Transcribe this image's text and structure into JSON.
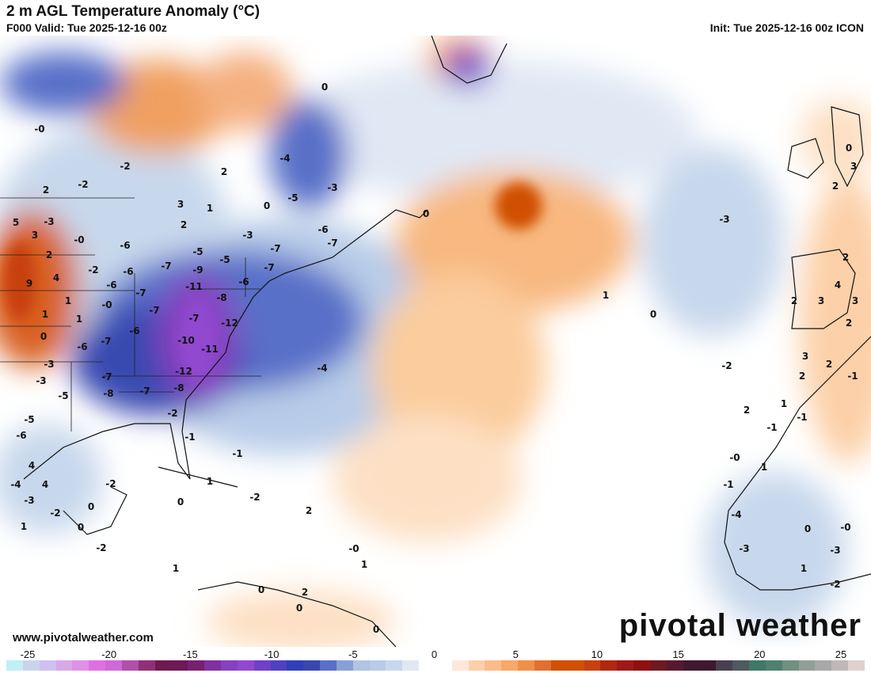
{
  "header": {
    "title": "2 m AGL Temperature Anomaly (°C)",
    "valid": "F000 Valid: Tue 2025-12-16 00z",
    "init": "Init: Tue 2025-12-16 00z ICON"
  },
  "footer": {
    "website": "www.pivotalweather.com",
    "brand": "pivotal weather"
  },
  "colorbar": {
    "ticks": [
      "-25",
      "-20",
      "-15",
      "-10",
      "-5",
      "0",
      "5",
      "10",
      "15",
      "20",
      "25"
    ],
    "tick_values": [
      -25,
      -20,
      -15,
      -10,
      -5,
      0,
      5,
      10,
      15,
      20,
      25
    ],
    "colors": [
      "#c0f0f5",
      "#c8d4ec",
      "#d0c0f0",
      "#d8a8e8",
      "#e090e8",
      "#e070e0",
      "#d068d8",
      "#b050a8",
      "#903078",
      "#701850",
      "#701858",
      "#782070",
      "#8030a0",
      "#8840c0",
      "#9048d0",
      "#7040c8",
      "#5040c0",
      "#3040b8",
      "#3848b0",
      "#5870c8",
      "#88a0d8",
      "#b0c4e4",
      "#b8cce8",
      "#c8d8ec",
      "#e0e8f4",
      "#ffffff",
      "#ffffff",
      "#fde8d8",
      "#fcd0a8",
      "#fbbc88",
      "#f8a868",
      "#f09048",
      "#e07030",
      "#d05000",
      "#d05000",
      "#c84010",
      "#b02810",
      "#a01818",
      "#901010",
      "#701820",
      "#581830",
      "#401830",
      "#401830",
      "#484050",
      "#505860",
      "#407868",
      "#508070",
      "#709080",
      "#90a098",
      "#a8a8a8",
      "#c0b8b8",
      "#e0d0d0"
    ]
  },
  "map_labels": [
    "-0",
    "-2",
    "2",
    "-2",
    "3",
    "2",
    "1",
    "-3",
    "0",
    "-5",
    "5",
    "-3",
    "3",
    "-0",
    "2",
    "9",
    "4",
    "-2",
    "-6",
    "1",
    "-0",
    "1",
    "1",
    "0",
    "-6",
    "-3",
    "-3",
    "-5",
    "-7",
    "-7",
    "-7",
    "-7",
    "-6",
    "-7",
    "-6",
    "-6",
    "-7",
    "-9",
    "-11",
    "-8",
    "-12",
    "-10",
    "-11",
    "-12",
    "-8",
    "-8",
    "-7",
    "-2",
    "-1",
    "-4",
    "-5",
    "-5",
    "-3",
    "-6",
    "-7",
    "-7",
    "-7",
    "-6",
    "2",
    "-5",
    "-6",
    "-4",
    "0",
    "0",
    "-3",
    "1",
    "0",
    "-2",
    "0",
    "2",
    "3",
    "2",
    "4",
    "3",
    "3",
    "2",
    "2",
    "3",
    "2",
    "2",
    "-1",
    "2",
    "1",
    "-1",
    "-1",
    "1",
    "-0",
    "-1",
    "-4",
    "0",
    "-0",
    "-3",
    "-3",
    "1",
    "-2",
    "4",
    "4",
    "-4",
    "-3",
    "-2",
    "0",
    "-2",
    "0",
    "0",
    "-2",
    "2",
    "1",
    "-2",
    "1",
    "0",
    "1",
    "-0",
    "2",
    "0",
    "0",
    "-1",
    "1"
  ]
}
